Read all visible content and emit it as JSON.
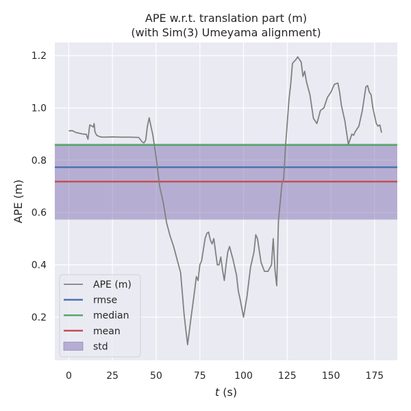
{
  "chart_data": {
    "type": "line",
    "title_line1": "APE w.r.t. translation part (m)",
    "title_line2": "(with Sim(3) Umeyama alignment)",
    "xlabel_var": "t",
    "xlabel_unit": " (s)",
    "ylabel": "APE (m)",
    "xlim": [
      -8,
      188
    ],
    "ylim": [
      0.035,
      1.25
    ],
    "xticks": [
      0,
      25,
      50,
      75,
      100,
      125,
      150,
      175
    ],
    "yticks": [
      0.2,
      0.4,
      0.6,
      0.8,
      1.0,
      1.2
    ],
    "ytick_labels": [
      "0.2",
      "0.4",
      "0.6",
      "0.8",
      "1.0",
      "1.2"
    ],
    "grid": true,
    "legend_position": "lower-left",
    "series": [
      {
        "name": "APE (m)",
        "color": "#808080",
        "x": [
          0,
          2,
          4,
          6,
          8,
          10,
          11,
          12,
          14,
          14.5,
          15,
          16,
          18,
          20,
          25,
          30,
          35,
          40,
          42,
          43,
          44,
          45,
          46,
          47,
          48,
          50,
          52,
          54,
          56,
          58,
          60,
          62,
          64,
          66,
          67,
          68,
          70,
          72,
          73,
          74,
          75,
          76,
          78,
          79,
          80,
          81,
          82,
          83,
          84,
          85,
          86,
          87,
          88,
          89,
          90,
          91,
          92,
          94,
          96,
          97,
          98,
          100,
          102,
          104,
          106,
          107,
          108,
          110,
          112,
          114,
          116,
          117,
          118,
          119,
          120,
          121,
          122,
          123,
          124,
          125,
          126,
          127,
          128,
          130,
          131,
          132,
          133,
          134,
          135,
          136,
          138,
          140,
          142,
          144,
          146,
          148,
          150,
          152,
          154,
          155,
          156,
          158,
          160,
          162,
          163,
          164,
          166,
          168,
          170,
          171,
          172,
          173,
          174,
          175,
          176,
          177,
          178,
          179
        ],
        "values": [
          0.912,
          0.913,
          0.906,
          0.903,
          0.9,
          0.899,
          0.88,
          0.935,
          0.927,
          0.94,
          0.908,
          0.895,
          0.889,
          0.888,
          0.889,
          0.888,
          0.888,
          0.887,
          0.87,
          0.866,
          0.876,
          0.93,
          0.962,
          0.93,
          0.9,
          0.81,
          0.7,
          0.64,
          0.56,
          0.51,
          0.47,
          0.42,
          0.37,
          0.21,
          0.15,
          0.095,
          0.2,
          0.3,
          0.355,
          0.34,
          0.4,
          0.415,
          0.5,
          0.52,
          0.525,
          0.495,
          0.48,
          0.5,
          0.45,
          0.4,
          0.4,
          0.43,
          0.38,
          0.34,
          0.4,
          0.45,
          0.47,
          0.42,
          0.36,
          0.3,
          0.27,
          0.2,
          0.28,
          0.39,
          0.45,
          0.515,
          0.5,
          0.41,
          0.375,
          0.375,
          0.4,
          0.5,
          0.38,
          0.32,
          0.57,
          0.64,
          0.71,
          0.73,
          0.85,
          0.94,
          1.03,
          1.09,
          1.17,
          1.185,
          1.195,
          1.185,
          1.175,
          1.12,
          1.14,
          1.1,
          1.05,
          0.96,
          0.94,
          0.99,
          1.0,
          1.04,
          1.06,
          1.09,
          1.095,
          1.06,
          1.01,
          0.95,
          0.86,
          0.9,
          0.895,
          0.91,
          0.93,
          0.99,
          1.08,
          1.085,
          1.06,
          1.05,
          1.0,
          0.97,
          0.94,
          0.93,
          0.935,
          0.905
        ]
      },
      {
        "name": "rmse",
        "color": "#4c72b0",
        "value": 0.773
      },
      {
        "name": "median",
        "color": "#55a868",
        "value": 0.858
      },
      {
        "name": "mean",
        "color": "#c44e52",
        "value": 0.718
      },
      {
        "name": "std",
        "color": "#8172b2",
        "band": [
          0.573,
          0.863
        ]
      }
    ]
  }
}
